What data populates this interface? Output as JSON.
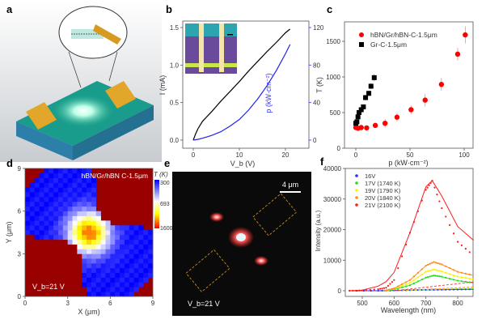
{
  "panel_labels": [
    "a",
    "b",
    "c",
    "d",
    "e",
    "f"
  ],
  "chart_data": [
    {
      "panel": "b",
      "type": "line",
      "xlabel": "V_b (V)",
      "ylabel": "I (mA)",
      "y2label": "p (kW·cm⁻²)",
      "xlim": [
        -2.5,
        25
      ],
      "ylim": [
        -0.1,
        1.6
      ],
      "y2lim": [
        -8,
        128
      ],
      "xticks": [
        0,
        10,
        20
      ],
      "yticks": [
        0.0,
        0.5,
        1.0,
        1.5
      ],
      "y2ticks": [
        0,
        40,
        80,
        120
      ],
      "colors": {
        "I": "#000000",
        "p": "#2222ee"
      },
      "series": [
        {
          "axis": "left",
          "x": [
            0,
            0.5,
            1,
            2,
            4,
            6,
            8,
            10,
            12,
            14,
            16,
            18,
            20,
            21
          ],
          "y": [
            0,
            0.08,
            0.15,
            0.25,
            0.38,
            0.52,
            0.65,
            0.78,
            0.92,
            1.05,
            1.18,
            1.3,
            1.43,
            1.48
          ]
        },
        {
          "axis": "right",
          "x": [
            0,
            1,
            2,
            4,
            6,
            8,
            10,
            12,
            14,
            16,
            18,
            20,
            21
          ],
          "y": [
            0,
            0.8,
            2,
            5,
            9,
            15,
            22,
            32,
            44,
            58,
            74,
            92,
            102
          ]
        }
      ]
    },
    {
      "panel": "c",
      "type": "scatter",
      "xlabel": "p (kW·cm⁻²)",
      "ylabel": "T (K)",
      "xlim": [
        -10,
        110
      ],
      "ylim": [
        0,
        1800
      ],
      "xticks": [
        0,
        50,
        100
      ],
      "yticks": [
        0,
        500,
        1000,
        1500
      ],
      "legend": "top-left",
      "series": [
        {
          "name": "hBN/Gr/hBN-C-1.5μm",
          "color": "#ff0000",
          "marker": "circle",
          "x": [
            0,
            2,
            5,
            10,
            18,
            27,
            38,
            51,
            64,
            79,
            94,
            101
          ],
          "y": [
            290,
            280,
            290,
            285,
            320,
            350,
            435,
            540,
            675,
            895,
            1320,
            1590
          ],
          "err": [
            20,
            20,
            20,
            20,
            30,
            60,
            60,
            60,
            90,
            90,
            90,
            120
          ]
        },
        {
          "name": "Gr-C-1.5μm",
          "color": "#000000",
          "marker": "square",
          "x": [
            0,
            1,
            2,
            3,
            5,
            7,
            9,
            12,
            14,
            17
          ],
          "y": [
            350,
            370,
            440,
            500,
            540,
            580,
            710,
            770,
            870,
            990
          ],
          "err": [
            20,
            20,
            20,
            20,
            20,
            30,
            40,
            40,
            40,
            50
          ]
        }
      ]
    },
    {
      "panel": "d",
      "type": "heatmap",
      "title": "hBN/Gr/hBN C-1.5μm",
      "xlabel": "X (μm)",
      "ylabel": "Y (μm)",
      "xlim": [
        0,
        9
      ],
      "ylim": [
        0,
        9
      ],
      "xticks": [
        0,
        3,
        6,
        9
      ],
      "yticks": [
        0,
        3,
        6,
        9
      ],
      "colorbar": {
        "label": "T (K)",
        "ticks": [
          "300",
          "693",
          "1600"
        ],
        "colors": [
          "#0000ff",
          "#ffffff",
          "#ffff00",
          "#ff0000"
        ]
      },
      "background_color": "#990000",
      "annotation": "V_b=21 V"
    },
    {
      "panel": "f",
      "type": "line",
      "xlabel": "Wavelength (nm)",
      "ylabel": "Intensity (a.u.)",
      "xlim": [
        450,
        850
      ],
      "ylim": [
        -2000,
        40000
      ],
      "xticks": [
        500,
        600,
        700,
        800
      ],
      "yticks": [
        0,
        10000,
        20000,
        30000,
        40000
      ],
      "legend": "top-left",
      "series": [
        {
          "name": "16V",
          "color": "#2233ff",
          "x": [
            460,
            550,
            600,
            650,
            700,
            750,
            800,
            850
          ],
          "y": [
            0,
            0,
            100,
            200,
            300,
            350,
            400,
            500
          ]
        },
        {
          "name": "17V (1740 K)",
          "color": "#22dd22",
          "x": [
            570,
            600,
            650,
            700,
            725,
            750,
            800,
            850
          ],
          "y": [
            0,
            400,
            1800,
            4300,
            5000,
            4600,
            3300,
            2600
          ]
        },
        {
          "name": "19V (1790 K)",
          "color": "#ffee00",
          "x": [
            570,
            600,
            650,
            700,
            725,
            750,
            800,
            850
          ],
          "y": [
            0,
            600,
            2600,
            6200,
            7000,
            6300,
            4600,
            3800
          ]
        },
        {
          "name": "20V (1840 K)",
          "color": "#ff8c1a",
          "x": [
            570,
            600,
            650,
            700,
            725,
            750,
            800,
            850
          ],
          "y": [
            0,
            800,
            3500,
            8200,
            9400,
            8600,
            6200,
            5000
          ]
        },
        {
          "name": "21V (2100 K)",
          "color": "#ff1a1a",
          "x": [
            460,
            500,
            550,
            575,
            600,
            650,
            700,
            720,
            750,
            800,
            850
          ],
          "y": [
            0,
            100,
            500,
            1000,
            3500,
            19000,
            33000,
            36000,
            27000,
            16000,
            11500
          ],
          "fit_y": [
            0,
            200,
            1500,
            3000,
            6000,
            19000,
            34000,
            36000,
            31000,
            21000,
            16500
          ]
        }
      ]
    }
  ],
  "panel_e": {
    "scalebar": "4 μm",
    "annotation": "V_b=21 V"
  }
}
